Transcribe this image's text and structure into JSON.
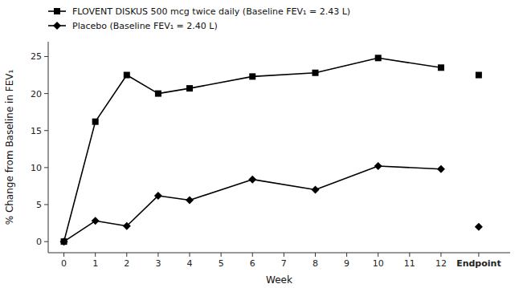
{
  "chart_data": {
    "type": "line",
    "xlabel": "Week",
    "ylabel": "% Change from Baseline in FEV₁",
    "xlim": [
      -0.5,
      14.2
    ],
    "ylim": [
      -1.5,
      27
    ],
    "xticks": [
      0,
      1,
      2,
      3,
      4,
      5,
      6,
      7,
      8,
      9,
      10,
      11,
      12,
      {
        "value": 13.2,
        "label": "Endpoint"
      }
    ],
    "yticks": [
      0,
      5,
      10,
      15,
      20,
      25
    ],
    "grid": false,
    "legend": "upper left",
    "series": [
      {
        "name": "FLOVENT DISKUS 500 mcg twice daily (Baseline FEV₁ = 2.43 L)",
        "color": "#000000",
        "marker": "square",
        "line_style": "solid",
        "x": [
          0,
          1,
          2,
          3,
          4,
          6,
          8,
          10,
          12
        ],
        "values": [
          0,
          16.2,
          22.5,
          20.0,
          20.7,
          22.3,
          22.8,
          24.8,
          23.5
        ]
      },
      {
        "name": "Placebo (Baseline FEV₁ = 2.40 L)",
        "color": "#000000",
        "marker": "diamond",
        "line_style": "solid",
        "x": [
          0,
          1,
          2,
          3,
          4,
          6,
          8,
          10,
          12
        ],
        "values": [
          0,
          2.8,
          2.1,
          6.2,
          5.6,
          8.4,
          7.0,
          10.2,
          9.8
        ]
      },
      {
        "color": "#000000",
        "marker": "square",
        "line_style": "none",
        "x": [
          13.2
        ],
        "values": [
          22.5
        ]
      },
      {
        "color": "#000000",
        "marker": "diamond",
        "line_style": "none",
        "x": [
          13.2
        ],
        "values": [
          2.0
        ]
      }
    ]
  }
}
